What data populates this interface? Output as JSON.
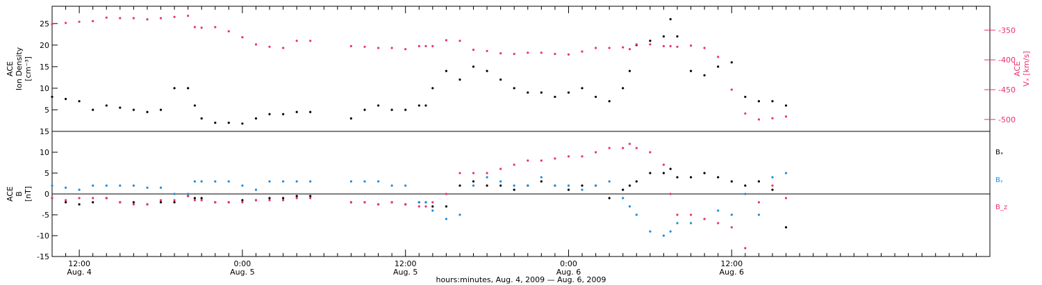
{
  "colors": {
    "black": "#000000",
    "pink": "#e8336b",
    "blue": "#1a8ce0"
  },
  "chart_data": [
    {
      "type": "scatter",
      "panel": "top",
      "left_axis_label": [
        "ACE",
        "Ion Density",
        "[cm⁻³]"
      ],
      "right_axis_label": [
        "ACE",
        "Vₓ [km/s]"
      ],
      "ylim_left": [
        0,
        29
      ],
      "ylim_right": [
        -520,
        -310
      ],
      "yticks_left": [
        5,
        10,
        15,
        20,
        25
      ],
      "yticks_right": [
        -350,
        -400,
        -450,
        -500
      ],
      "series": [
        {
          "color": "black",
          "axis": "left",
          "x": [
            0,
            1,
            2,
            3,
            4,
            5,
            6,
            7,
            8,
            9,
            10,
            10.5,
            11,
            12,
            13,
            14,
            15,
            16,
            17,
            18,
            19,
            22,
            23,
            24,
            25,
            26,
            27,
            27.5,
            28,
            29,
            30,
            31,
            32,
            33,
            34,
            35,
            36,
            37,
            38,
            39,
            40,
            41,
            42,
            42.5,
            43,
            44,
            45,
            45.5,
            46,
            47,
            48,
            49,
            50,
            51,
            52,
            53,
            54
          ],
          "y": [
            8,
            7.5,
            7,
            5,
            6,
            5.5,
            5,
            4.5,
            5,
            10,
            10,
            6,
            3,
            2,
            2,
            1.8,
            3,
            4,
            4,
            4.5,
            4.5,
            3,
            5,
            6,
            5,
            5,
            6,
            6,
            10,
            14,
            12,
            15,
            14,
            12,
            10,
            9,
            9,
            8,
            9,
            10,
            8,
            7,
            10,
            14,
            20,
            21,
            22,
            26,
            22,
            14,
            13,
            15,
            16,
            8,
            7,
            7,
            6
          ]
        },
        {
          "color": "pink",
          "axis": "right",
          "x": [
            0,
            1,
            2,
            3,
            4,
            5,
            6,
            7,
            8,
            9,
            10,
            10.5,
            11,
            12,
            13,
            14,
            15,
            16,
            17,
            18,
            19,
            22,
            23,
            24,
            25,
            26,
            27,
            27.5,
            28,
            29,
            30,
            31,
            32,
            33,
            34,
            35,
            36,
            37,
            38,
            39,
            40,
            41,
            42,
            42.5,
            43,
            44,
            45,
            45.5,
            46,
            47,
            48,
            49,
            50,
            51,
            52,
            53,
            54
          ],
          "y": [
            -340,
            -338,
            -336,
            -335,
            -329,
            -330,
            -330,
            -332,
            -330,
            -328,
            -326,
            -345,
            -346,
            -345,
            -352,
            -362,
            -374,
            -378,
            -380,
            -368,
            -368,
            -377,
            -378,
            -380,
            -380,
            -382,
            -377,
            -377,
            -377,
            -367,
            -368,
            -383,
            -385,
            -389,
            -390,
            -388,
            -388,
            -390,
            -391,
            -386,
            -380,
            -380,
            -379,
            -382,
            -374,
            -374,
            -377,
            -377,
            -378,
            -376,
            -380,
            -395,
            -450,
            -490,
            -500,
            -498,
            -495
          ]
        }
      ],
      "legend": []
    },
    {
      "type": "scatter",
      "panel": "bottom",
      "left_axis_label": [
        "ACE",
        "B",
        "[nT]"
      ],
      "ylim": [
        -15,
        15
      ],
      "yticks": [
        -15,
        -10,
        -5,
        0,
        5,
        10,
        15
      ],
      "series": [
        {
          "name": "Bₓ",
          "color": "black",
          "x": [
            0,
            1,
            2,
            3,
            4,
            5,
            6,
            7,
            8,
            9,
            10,
            10.5,
            11,
            12,
            13,
            14,
            15,
            16,
            17,
            18,
            19,
            22,
            23,
            24,
            25,
            26,
            27,
            27.5,
            28,
            29,
            30,
            31,
            32,
            33,
            34,
            35,
            36,
            37,
            38,
            39,
            40,
            41,
            42,
            42.5,
            43,
            44,
            45,
            45.5,
            46,
            47,
            48,
            49,
            50,
            51,
            52,
            53,
            54
          ],
          "y": [
            -1,
            -2,
            -2.5,
            -2,
            -1,
            -2,
            -2,
            -2.5,
            -2,
            -2,
            -0.5,
            -1,
            -1,
            -2,
            -2,
            -1.5,
            -1.5,
            -1,
            -1,
            -0.5,
            -0.5,
            -2,
            -2,
            -2.5,
            -2,
            -2.5,
            -2,
            -2,
            -3,
            -3,
            2,
            3,
            2,
            2,
            1,
            2,
            3,
            2,
            1,
            2,
            2,
            -1,
            1,
            2,
            3,
            5,
            5,
            6,
            4,
            4,
            5,
            4,
            3,
            2,
            3,
            1,
            -8
          ]
        },
        {
          "name": "Bᵧ",
          "color": "blue",
          "x": [
            0,
            1,
            2,
            3,
            4,
            5,
            6,
            7,
            8,
            9,
            10,
            10.5,
            11,
            12,
            13,
            14,
            15,
            16,
            17,
            18,
            19,
            22,
            23,
            24,
            25,
            26,
            27,
            27.5,
            28,
            29,
            30,
            31,
            32,
            33,
            34,
            35,
            36,
            37,
            38,
            39,
            40,
            41,
            42,
            42.5,
            43,
            44,
            45,
            45.5,
            46,
            47,
            48,
            49,
            50,
            51,
            52,
            53,
            54
          ],
          "y": [
            2,
            1.5,
            1,
            2,
            2,
            2,
            2,
            1.5,
            1.5,
            0,
            0,
            3,
            3,
            3,
            3,
            2,
            1,
            3,
            3,
            3,
            3,
            3,
            3,
            3,
            2,
            2,
            -2,
            -2,
            -4,
            -6,
            -5,
            2,
            4,
            3,
            2,
            2,
            4,
            2,
            2,
            1,
            2,
            3,
            -1,
            -3,
            -5,
            -9,
            -10,
            -9,
            -7,
            -7,
            -6,
            -4,
            -5,
            0,
            -5,
            4,
            5
          ]
        },
        {
          "name": "B_z",
          "color": "pink",
          "x": [
            0,
            1,
            2,
            3,
            4,
            5,
            6,
            7,
            8,
            9,
            10,
            10.5,
            11,
            12,
            13,
            14,
            15,
            16,
            17,
            18,
            19,
            22,
            23,
            24,
            25,
            26,
            27,
            27.5,
            28,
            29,
            30,
            31,
            32,
            33,
            34,
            35,
            36,
            37,
            38,
            39,
            40,
            41,
            42,
            42.5,
            43,
            44,
            45,
            45.5,
            46,
            47,
            48,
            49,
            50,
            51,
            52,
            53,
            54
          ],
          "y": [
            -1,
            -1.5,
            -1,
            -1,
            -1,
            -2,
            -2.5,
            -2.5,
            -1.5,
            -1.5,
            -0.5,
            -1.5,
            -1.5,
            -2,
            -2,
            -2,
            -1.5,
            -1.5,
            -1.5,
            -1,
            -1,
            -2,
            -2,
            -2.5,
            -2,
            -2.5,
            -3,
            -3,
            -2,
            0,
            5,
            5,
            5,
            6,
            7,
            8,
            8,
            8.5,
            9,
            9,
            10,
            11,
            11,
            12,
            11,
            10,
            7,
            0,
            -5,
            -5,
            -6,
            -7,
            -8,
            -13,
            -2,
            2,
            -1
          ]
        }
      ],
      "legend": [
        "Bₓ",
        "Bᵧ",
        "B_z"
      ]
    }
  ],
  "x_axis": {
    "start_hours": 0,
    "end_hours": 69,
    "ticks": [
      {
        "hour": 2,
        "time": "12:00",
        "day": "Aug. 4"
      },
      {
        "hour": 14,
        "time": "0:00",
        "day": "Aug. 5"
      },
      {
        "hour": 26,
        "time": "12:00",
        "day": "Aug. 5"
      },
      {
        "hour": 38,
        "time": "0:00",
        "day": "Aug. 6"
      },
      {
        "hour": 50,
        "time": "12:00",
        "day": "Aug. 6"
      }
    ],
    "title": "hours:minutes, Aug.  4, 2009 — Aug.  6, 2009"
  }
}
